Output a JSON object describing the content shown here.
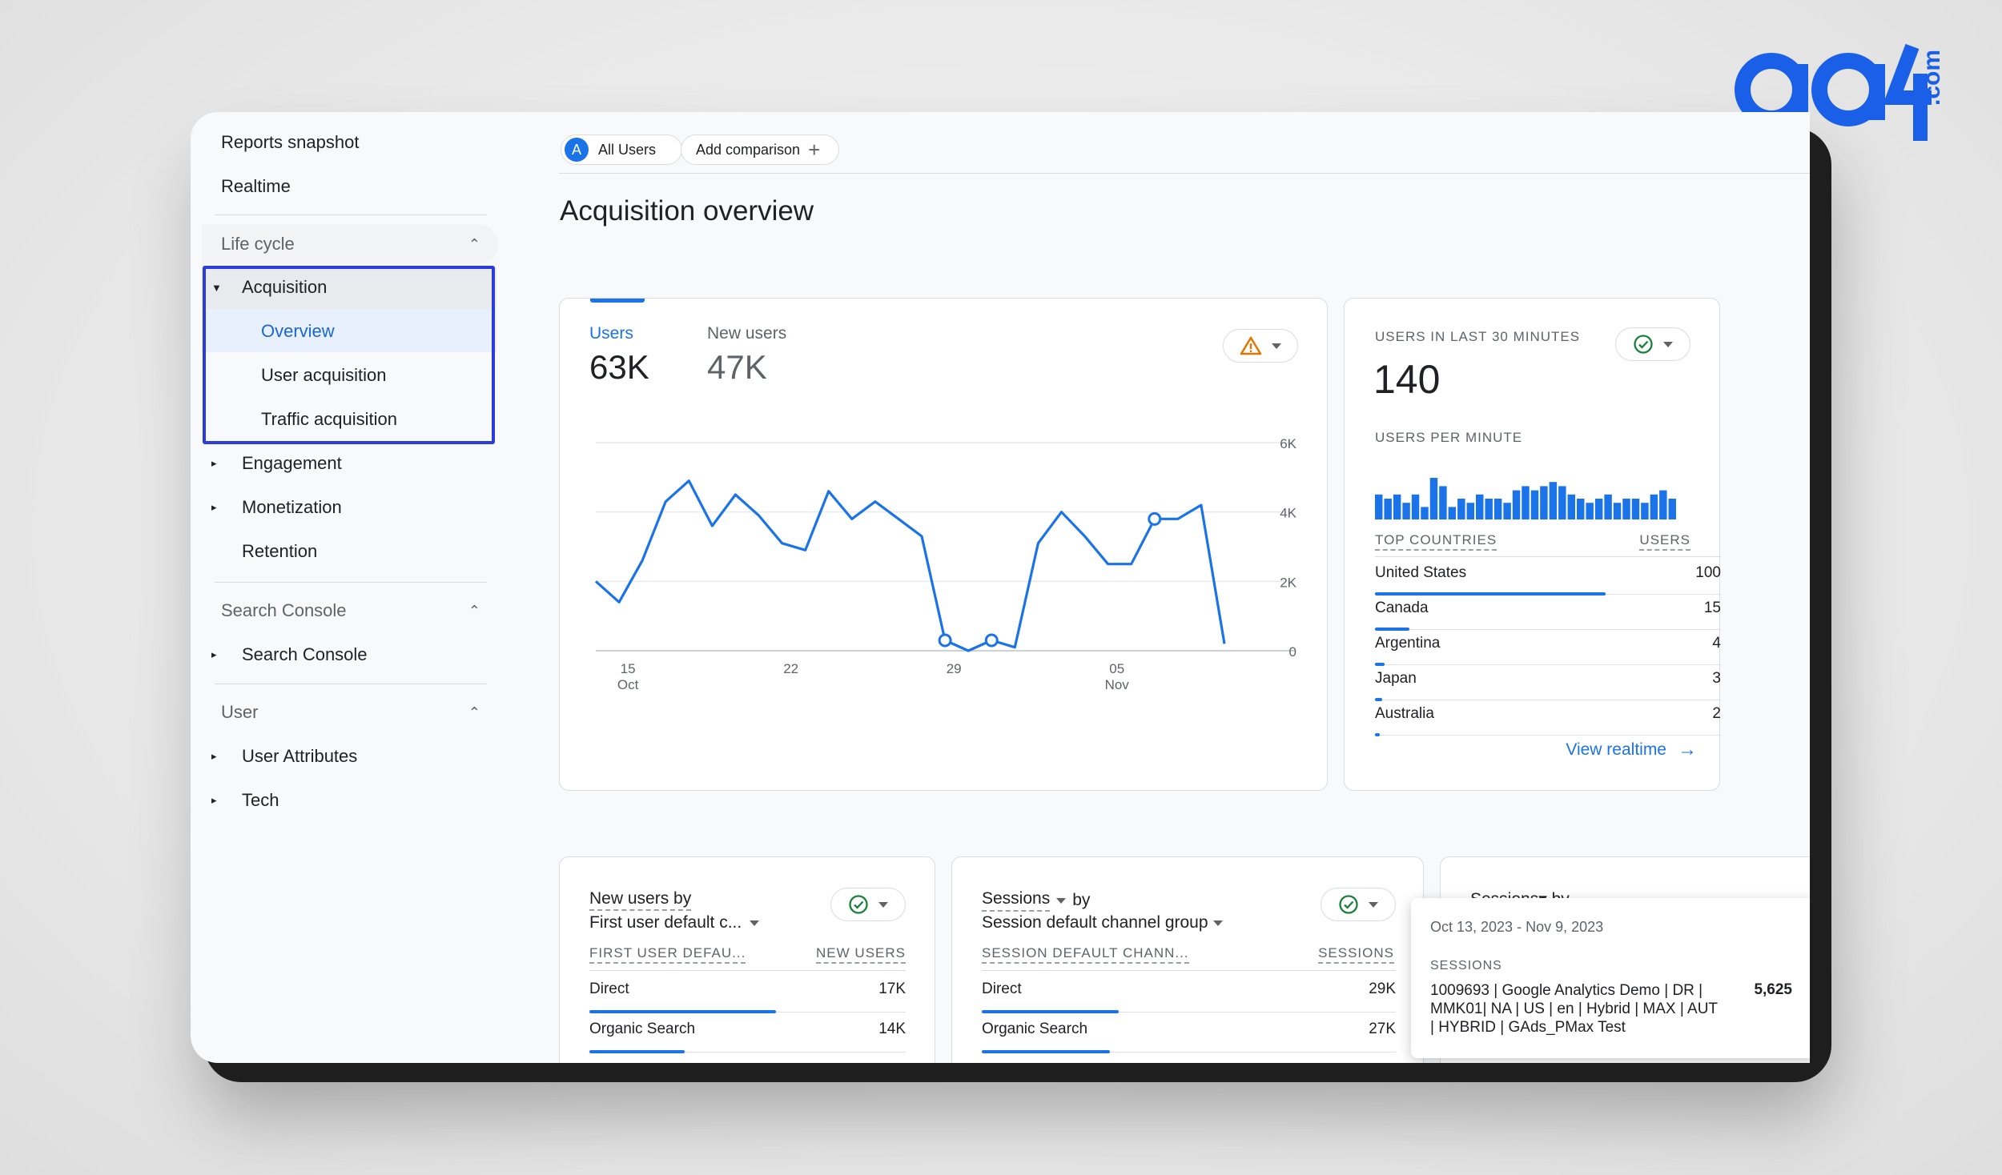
{
  "logo": {
    "text": "ga",
    "suffix": ".com"
  },
  "sidebar": {
    "top_items": [
      "Reports snapshot",
      "Realtime"
    ],
    "sections": {
      "lifecycle": "Life cycle",
      "search_console": "Search Console",
      "user": "User"
    },
    "lifecycle_items": {
      "acquisition": "Acquisition",
      "overview": "Overview",
      "user_acquisition": "User acquisition",
      "traffic_acquisition": "Traffic acquisition",
      "engagement": "Engagement",
      "monetization": "Monetization",
      "retention": "Retention"
    },
    "search_console_items": {
      "search_console": "Search Console"
    },
    "user_items": {
      "user_attributes": "User Attributes",
      "tech": "Tech"
    }
  },
  "header": {
    "segment_badge": "A",
    "segment_label": "All Users",
    "add_comparison": "Add comparison",
    "plus_icon": "+"
  },
  "page_title": "Acquisition overview",
  "main_card": {
    "users_label": "Users",
    "users_value": "63K",
    "new_users_label": "New users",
    "new_users_value": "47K",
    "warning_icon": "warning-icon",
    "chart_data": {
      "type": "line",
      "series": [
        {
          "values": [
            2000,
            1400,
            2600,
            4300,
            4900,
            3600,
            4500,
            3900,
            3100,
            2900,
            4600,
            3800,
            4300,
            3800,
            3300,
            300,
            0,
            300,
            100,
            3100,
            4000,
            3300,
            2500,
            2500,
            3800,
            3800,
            4200,
            200
          ]
        }
      ],
      "markers": [
        15,
        17,
        24
      ],
      "x_ticks": [
        {
          "day": "15",
          "month": "Oct"
        },
        {
          "day": "22",
          "month": ""
        },
        {
          "day": "29",
          "month": ""
        },
        {
          "day": "05",
          "month": "Nov"
        }
      ],
      "y_ticks": [
        "6K",
        "4K",
        "2K",
        "0"
      ],
      "ylim": [
        0,
        6000
      ],
      "color": "#1a73e8"
    }
  },
  "realtime_card": {
    "users_label": "USERS IN LAST 30 MINUTES",
    "users_value": "140",
    "per_minute_label": "USERS PER MINUTE",
    "per_minute_bars": [
      6,
      5,
      6,
      4,
      6,
      3,
      10,
      8,
      3,
      5,
      4,
      6,
      5,
      5,
      4,
      7,
      8,
      7,
      8,
      9,
      8,
      6,
      5,
      4,
      5,
      6,
      4,
      5,
      5,
      4,
      6,
      7,
      5
    ],
    "top_countries_label": "TOP COUNTRIES",
    "users_col_label": "USERS",
    "countries": [
      {
        "name": "United States",
        "value": "100",
        "pct": 1.0
      },
      {
        "name": "Canada",
        "value": "15",
        "pct": 0.15
      },
      {
        "name": "Argentina",
        "value": "4",
        "pct": 0.04
      },
      {
        "name": "Japan",
        "value": "3",
        "pct": 0.03
      },
      {
        "name": "Australia",
        "value": "2",
        "pct": 0.02
      }
    ],
    "view_realtime": "View realtime",
    "arrow_icon": "→"
  },
  "new_users_card": {
    "title_line1": "New users by",
    "title_line2": "First user default c...",
    "col1": "FIRST USER DEFAU...",
    "col2": "NEW USERS",
    "rows": [
      {
        "name": "Direct",
        "value": "17K",
        "pct": 0.59
      },
      {
        "name": "Organic Search",
        "value": "14K",
        "pct": 0.3
      }
    ]
  },
  "sessions_card": {
    "title_line1": "Sessions",
    "title_by": "by",
    "title_line2": "Session default channel group",
    "col1": "SESSION DEFAULT CHANN...",
    "col2": "SESSIONS",
    "rows": [
      {
        "name": "Direct",
        "value": "29K",
        "pct": 0.33
      },
      {
        "name": "Organic Search",
        "value": "27K",
        "pct": 0.31
      }
    ]
  },
  "third_card": {
    "title_partial": "Sessions▾ by"
  },
  "tooltip": {
    "date_range": "Oct 13, 2023 - Nov 9, 2023",
    "metric": "SESSIONS",
    "campaign": "1009693 | Google Analytics Demo | DR | MMK01| NA | US | en | Hybrid | MAX | AUT | HYBRID | GAds_PMax Test",
    "value": "5,625"
  }
}
